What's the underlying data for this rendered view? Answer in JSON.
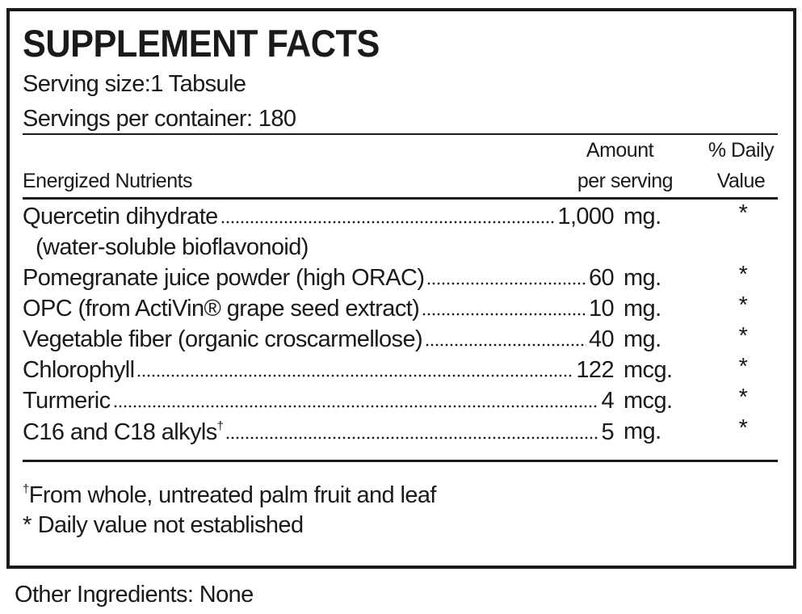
{
  "title": "SUPPLEMENT FACTS",
  "serving_size": "Serving size:1 Tabsule",
  "servings_per_container": "Servings per container: 180",
  "header": {
    "group": "Energized Nutrients",
    "amount": [
      "Amount",
      "per serving"
    ],
    "daily_value": [
      "% Daily",
      "Value"
    ]
  },
  "rows": [
    {
      "name": "Quercetin dihydrate",
      "detail": "(water-soluble bioflavonoid)",
      "amount": "1,000",
      "unit": "mg.",
      "daily_value": "*"
    },
    {
      "name": "Pomegranate juice powder (high ORAC)",
      "amount": "60",
      "unit": "mg.",
      "daily_value": "*"
    },
    {
      "name": "OPC (from ActiVin® grape seed extract)",
      "amount": "10",
      "unit": "mg.",
      "daily_value": "*"
    },
    {
      "name": "Vegetable fiber (organic croscarmellose)",
      "amount": "40",
      "unit": "mg.",
      "daily_value": "*"
    },
    {
      "name": "Chlorophyll",
      "amount": "122",
      "unit": "mcg.",
      "daily_value": "*"
    },
    {
      "name": "Turmeric",
      "amount": "4",
      "unit": "mcg.",
      "daily_value": "*"
    },
    {
      "name": "C16 and C18 alkyls",
      "mark": "†",
      "amount": "5",
      "unit": "mg.",
      "daily_value": "*"
    }
  ],
  "footnotes": [
    {
      "mark": "†",
      "text": "From whole, untreated palm fruit and leaf"
    },
    {
      "mark": "*",
      "text": "Daily value not established"
    }
  ],
  "other_ingredients": "Other Ingredients: None"
}
